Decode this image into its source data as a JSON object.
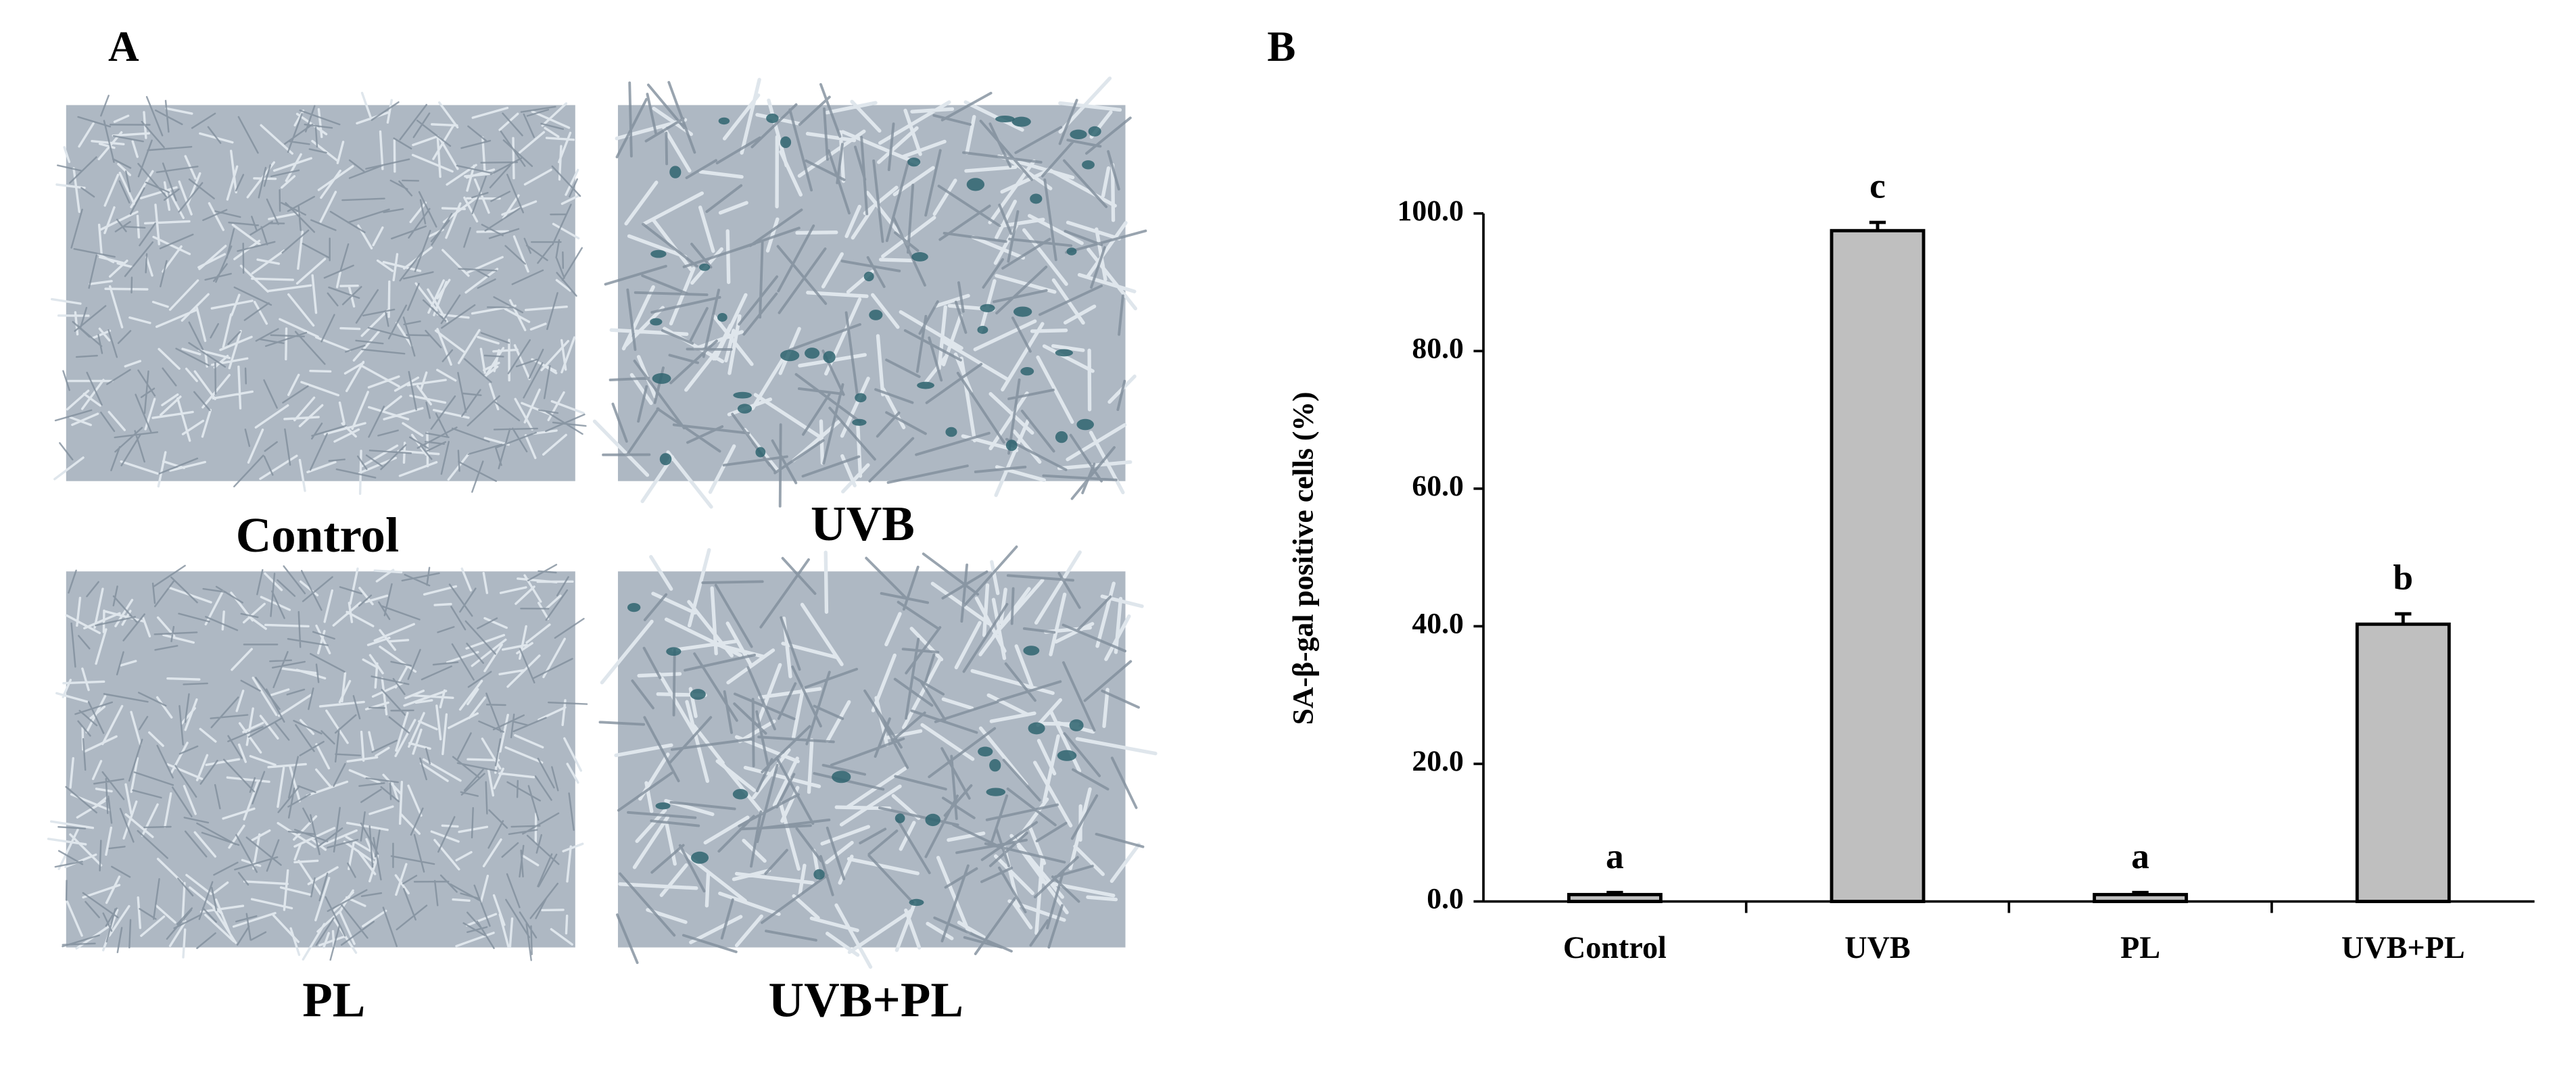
{
  "panel_labels": [
    "A",
    "B"
  ],
  "images": {
    "captions": [
      "Control",
      "UVB",
      "PL",
      "UVB+PL"
    ]
  },
  "chart_data": {
    "type": "bar",
    "ylabel": "SA-β-gal positive cells (%)",
    "categories": [
      "Control",
      "UVB",
      "PL",
      "UVB+PL"
    ],
    "values": [
      1.0,
      97.5,
      1.0,
      40.3
    ],
    "errors": [
      0.3,
      1.2,
      0.3,
      1.5
    ],
    "annotations": [
      "a",
      "c",
      "a",
      "b"
    ],
    "color": "#bfbfbf",
    "ylim": [
      0,
      100
    ],
    "yticks": [
      {
        "value": 0,
        "label": "0.0"
      },
      {
        "value": 20,
        "label": "20.0"
      },
      {
        "value": 40,
        "label": "40.0"
      },
      {
        "value": 60,
        "label": "60.0"
      },
      {
        "value": 80,
        "label": "80.0"
      },
      {
        "value": 100,
        "label": "100.0"
      }
    ]
  }
}
